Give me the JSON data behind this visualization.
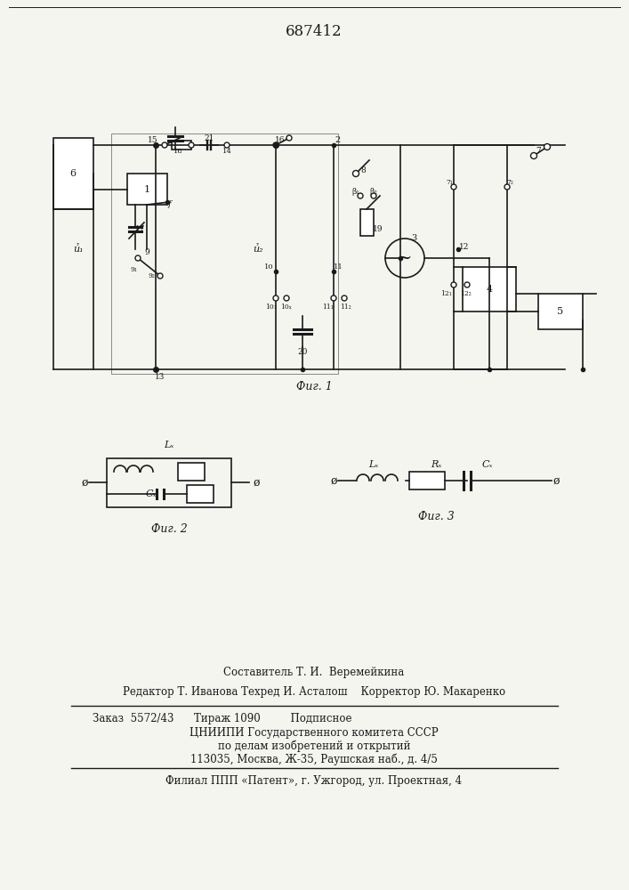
{
  "title": "687412",
  "title_fontsize": 12,
  "fig2_label": "Фиг. 2",
  "fig3_label": "Фиг. 3",
  "fig1_label": "Фиг. 1",
  "footer_lines": [
    "Составитель Т. И.  Веремейкина",
    "Редактор Т. Иванова Техред И. Асталош    Корректор Ю. Макаренко",
    "Заказ  5572/43      Тираж 1090         Подписное",
    "ЦНИИПИ Государственного комитета СССР",
    "по делам изобретений и открытий",
    "113035, Москва, Ж-35, Раушская наб., д. 4/5",
    "Филиал ППП «Патент», г. Ужгород, ул. Проектная, 4"
  ],
  "bg_color": "#f5f5f0",
  "line_color": "#1a1a1a"
}
